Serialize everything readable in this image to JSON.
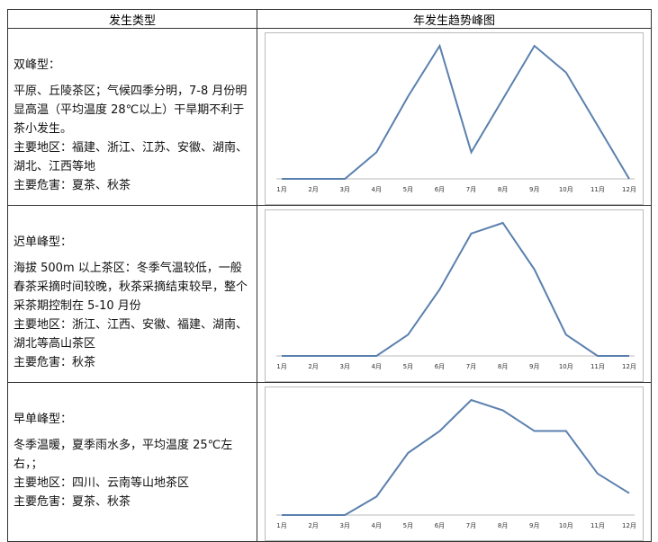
{
  "table": {
    "headers": [
      "发生类型",
      "年发生趋势峰图"
    ],
    "rows": [
      {
        "type_name": "双峰型：",
        "description": "平原、丘陵茶区；气候四季分明，7-8 月份明显高温（平均温度 28℃以上）干旱期不利于茶小发生。",
        "regions": "主要地区：福建、浙江、江苏、安徽、湖南、湖北、江西等地",
        "harm": "主要危害：夏茶、秋茶",
        "chart_data": {
          "type": "line",
          "color": "#5b80ae",
          "categories": [
            "1月",
            "2月",
            "3月",
            "4月",
            "5月",
            "6月",
            "7月",
            "8月",
            "9月",
            "10月",
            "11月",
            "12月"
          ],
          "values": [
            0,
            0,
            0,
            20,
            62,
            100,
            20,
            60,
            100,
            80,
            40,
            0
          ],
          "ylim": [
            0,
            100
          ]
        }
      },
      {
        "type_name": "迟单峰型：",
        "description": "海拔 500m 以上茶区：冬季气温较低，一般春茶采摘时间较晚，秋茶采摘结束较早，整个采茶期控制在 5-10 月份",
        "regions": "主要地区：浙江、江西、安徽、福建、湖南、湖北等高山茶区",
        "harm": "主要危害：秋茶",
        "chart_data": {
          "type": "line",
          "color": "#5b80ae",
          "categories": [
            "1月",
            "2月",
            "3月",
            "4月",
            "5月",
            "6月",
            "7月",
            "8月",
            "9月",
            "10月",
            "11月",
            "12月"
          ],
          "values": [
            0,
            0,
            0,
            0,
            16,
            50,
            92,
            100,
            65,
            16,
            0,
            0
          ],
          "ylim": [
            0,
            100
          ]
        }
      },
      {
        "type_name": "早单峰型：",
        "description": "冬季温暖，夏季雨水多，平均温度 25℃左右，；",
        "regions": "主要地区：四川、云南等山地茶区",
        "harm": "主要危害：夏茶、秋茶",
        "chart_data": {
          "type": "line",
          "color": "#5b80ae",
          "categories": [
            "1月",
            "2月",
            "3月",
            "4月",
            "5月",
            "6月",
            "7月",
            "8月",
            "9月",
            "10月",
            "11月",
            "12月"
          ],
          "values": [
            0,
            0,
            0,
            16,
            54,
            73,
            100,
            91,
            73,
            73,
            36,
            19
          ],
          "ylim": [
            0,
            100
          ]
        }
      }
    ]
  }
}
